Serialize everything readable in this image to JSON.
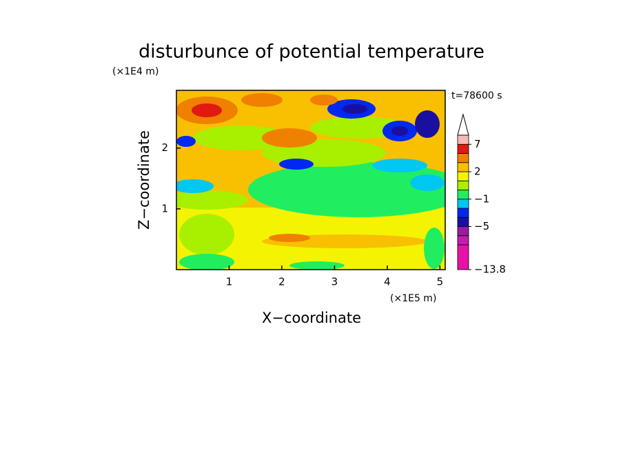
{
  "chart_data": {
    "type": "contour",
    "title": "disturbunce of potential temperature",
    "x_label": "X−coordinate",
    "y_label": "Z−coordinate",
    "x_unit": "(×1E5 m)",
    "y_unit": "(×1E4 m)",
    "annotation": "t=78600 s",
    "xlim": [
      0,
      5.1
    ],
    "ylim": [
      0,
      2.95
    ],
    "xticks": [
      1,
      2,
      3,
      4,
      5
    ],
    "yticks": [
      1,
      2
    ],
    "colorbar": {
      "levels": [
        -13.8,
        -9,
        -7,
        -5,
        -3,
        -2,
        -1,
        0,
        1,
        2,
        3,
        5,
        7,
        9
      ],
      "colors": [
        "#e612a6",
        "#c21cb0",
        "#9a1aa0",
        "#1a10a0",
        "#0028f0",
        "#00c8f0",
        "#20ee60",
        "#a8f000",
        "#f4f400",
        "#f8c000",
        "#f08000",
        "#e01a10",
        "#f8b8b8"
      ],
      "ticks": [
        {
          "value": -13.8,
          "label": "−13.8"
        },
        {
          "value": -5,
          "label": "−5"
        },
        {
          "value": -1,
          "label": "−1"
        },
        2,
        7
      ],
      "extend": "max"
    }
  }
}
